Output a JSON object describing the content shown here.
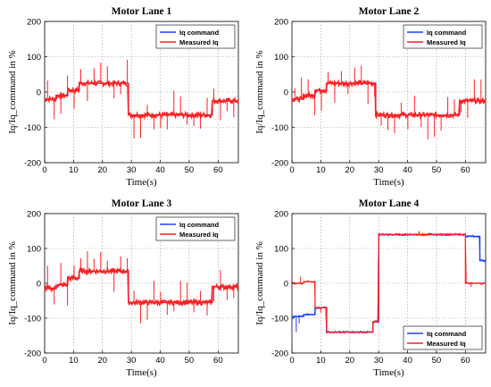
{
  "chart_data": [
    {
      "type": "line",
      "title": "Motor Lane 1",
      "xlabel": "Time(s)",
      "ylabel": "Iq/Iq_command in %",
      "xlim": [
        0,
        67
      ],
      "ylim": [
        -200,
        200
      ],
      "xticks": [
        "0",
        "10",
        "20",
        "30",
        "40",
        "50",
        "60"
      ],
      "yticks": [
        "-200",
        "-100",
        "0",
        "100",
        "200"
      ],
      "grid": true,
      "legend": "top-right",
      "legend_entries": [
        "Iq command",
        "Measured Iq"
      ],
      "colors": [
        "#1f3fff",
        "#ff2020"
      ],
      "series": [
        {
          "name": "Iq command",
          "x": [
            0,
            4,
            4,
            8,
            8,
            12,
            12,
            29,
            29,
            58,
            58,
            67
          ],
          "y": [
            -20,
            -20,
            -10,
            -10,
            5,
            5,
            25,
            25,
            -65,
            -65,
            -25,
            -25
          ]
        },
        {
          "name": "Measured Iq",
          "x": [
            0,
            4,
            4,
            8,
            8,
            12,
            12,
            29,
            29,
            58,
            58,
            67
          ],
          "y": [
            -20,
            -20,
            -10,
            -10,
            5,
            5,
            25,
            25,
            -65,
            -65,
            -25,
            -25
          ]
        }
      ]
    },
    {
      "type": "line",
      "title": "Motor Lane 2",
      "xlabel": "Time(s)",
      "ylabel": "Iq/Iq_command in %",
      "xlim": [
        0,
        67
      ],
      "ylim": [
        -200,
        200
      ],
      "xticks": [
        "0",
        "10",
        "20",
        "30",
        "40",
        "50",
        "60"
      ],
      "yticks": [
        "-200",
        "-100",
        "0",
        "100",
        "200"
      ],
      "grid": true,
      "legend": "top-right",
      "legend_entries": [
        "Iq command",
        "Measured Iq"
      ],
      "colors": [
        "#1f3fff",
        "#ff2020"
      ],
      "series": [
        {
          "name": "Iq command",
          "x": [
            0,
            4,
            4,
            8,
            8,
            12,
            12,
            29,
            29,
            58,
            58,
            67
          ],
          "y": [
            -20,
            -20,
            -10,
            -10,
            5,
            5,
            25,
            25,
            -65,
            -65,
            -25,
            -25
          ]
        },
        {
          "name": "Measured Iq",
          "x": [
            0,
            4,
            4,
            8,
            8,
            12,
            12,
            29,
            29,
            58,
            58,
            67
          ],
          "y": [
            -20,
            -20,
            -10,
            -10,
            5,
            5,
            25,
            25,
            -65,
            -65,
            -25,
            -25
          ]
        }
      ]
    },
    {
      "type": "line",
      "title": "Motor Lane 3",
      "xlabel": "Time(s)",
      "ylabel": "Iq/Iq_command in %",
      "xlim": [
        0,
        67
      ],
      "ylim": [
        -200,
        200
      ],
      "xticks": [
        "0",
        "10",
        "20",
        "30",
        "40",
        "50",
        "60"
      ],
      "yticks": [
        "-200",
        "-100",
        "0",
        "100",
        "200"
      ],
      "grid": true,
      "legend": "top-right",
      "legend_entries": [
        "Iq command",
        "Measured Iq"
      ],
      "colors": [
        "#1f3fff",
        "#ff2020"
      ],
      "series": [
        {
          "name": "Iq command",
          "x": [
            0,
            4,
            4,
            8,
            8,
            12,
            12,
            29,
            29,
            58,
            58,
            67
          ],
          "y": [
            -15,
            -15,
            -5,
            -5,
            15,
            15,
            35,
            35,
            -55,
            -55,
            -10,
            -10
          ]
        },
        {
          "name": "Measured Iq",
          "x": [
            0,
            4,
            4,
            8,
            8,
            12,
            12,
            29,
            29,
            58,
            58,
            67
          ],
          "y": [
            -15,
            -15,
            -5,
            -5,
            15,
            15,
            35,
            35,
            -55,
            -55,
            -10,
            -10
          ]
        }
      ]
    },
    {
      "type": "line",
      "title": "Motor Lane 4",
      "xlabel": "Time(s)",
      "ylabel": "Iq/Iq_command in %",
      "xlim": [
        0,
        67
      ],
      "ylim": [
        -200,
        200
      ],
      "xticks": [
        "0",
        "10",
        "20",
        "30",
        "40",
        "50",
        "60"
      ],
      "yticks": [
        "-200",
        "-100",
        "0",
        "100",
        "200"
      ],
      "grid": true,
      "legend": "bottom-right",
      "legend_entries": [
        "Iq command",
        "Measured Iq"
      ],
      "colors": [
        "#1f3fff",
        "#ff2020"
      ],
      "series": [
        {
          "name": "Iq command",
          "x": [
            0,
            4,
            4,
            8,
            8,
            12,
            12,
            28,
            28,
            30,
            30,
            60,
            60,
            65,
            65,
            67
          ],
          "y": [
            -95,
            -95,
            -90,
            -90,
            -70,
            -70,
            -140,
            -140,
            -110,
            -110,
            140,
            140,
            135,
            135,
            65,
            65
          ]
        },
        {
          "name": "Measured Iq",
          "x": [
            0,
            4,
            4,
            8,
            8,
            12,
            12,
            28,
            28,
            30,
            30,
            60,
            60,
            67
          ],
          "y": [
            0,
            0,
            5,
            5,
            -70,
            -70,
            -140,
            -140,
            -110,
            -110,
            140,
            140,
            0,
            0
          ]
        }
      ]
    }
  ]
}
